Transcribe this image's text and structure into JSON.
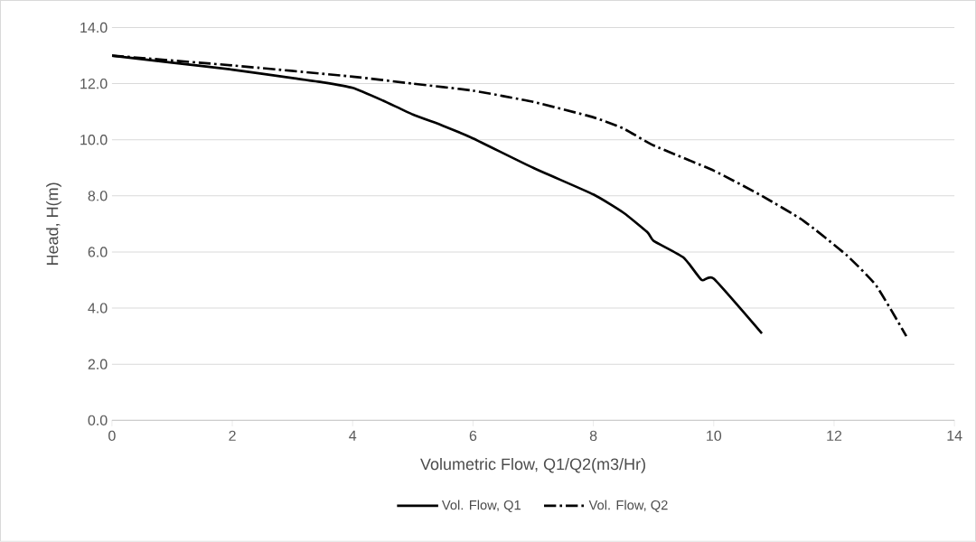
{
  "chart_data": {
    "type": "line",
    "xlabel": "Volumetric Flow, Q1/Q2(m3/Hr)",
    "ylabel": "Head, H(m)",
    "series": [
      {
        "name": "Vol. Flow, Q1",
        "color": "#000000",
        "line_style": "solid",
        "x": [
          0,
          1,
          2,
          3,
          3.5,
          4,
          4.5,
          5,
          5.5,
          6,
          7,
          8,
          8.5,
          8.9,
          9,
          9.5,
          9.8,
          10,
          10.8
        ],
        "values": [
          13,
          12.75,
          12.5,
          12.2,
          12.05,
          11.85,
          11.4,
          10.9,
          10.5,
          10.05,
          9.0,
          8.05,
          7.4,
          6.7,
          6.4,
          5.8,
          5.0,
          5.05,
          3.1
        ]
      },
      {
        "name": "Vol. Flow, Q2",
        "color": "#000000",
        "line_style": "dashdot",
        "x": [
          0,
          2,
          4,
          5,
          6,
          7,
          8,
          8.5,
          9,
          10,
          10.8,
          11.5,
          12.2,
          12.7,
          13.2
        ],
        "values": [
          13,
          12.65,
          12.25,
          12.0,
          11.75,
          11.35,
          10.8,
          10.4,
          9.8,
          8.9,
          8.0,
          7.1,
          5.9,
          4.8,
          3.0
        ]
      }
    ],
    "xlim": [
      0,
      14
    ],
    "xticks": [
      0,
      2,
      4,
      6,
      8,
      10,
      12,
      14
    ],
    "ylim": [
      0,
      14
    ],
    "yticks": [
      {
        "value": 0,
        "label": "0.0"
      },
      {
        "value": 2,
        "label": "2.0"
      },
      {
        "value": 4,
        "label": "4.0"
      },
      {
        "value": 6,
        "label": "6.0"
      },
      {
        "value": 8,
        "label": "8.0"
      },
      {
        "value": 10,
        "label": "10.0"
      },
      {
        "value": 12,
        "label": "12.0"
      },
      {
        "value": 14,
        "label": "14.0"
      }
    ],
    "grid": "y",
    "legend": "bottom",
    "marker": "none"
  }
}
